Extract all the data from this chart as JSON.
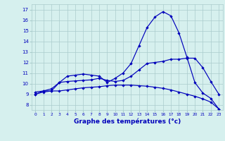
{
  "title": "Graphe des températures (°c)",
  "x_hours": [
    0,
    1,
    2,
    3,
    4,
    5,
    6,
    7,
    8,
    9,
    10,
    11,
    12,
    13,
    14,
    15,
    16,
    17,
    18,
    19,
    20,
    21,
    22,
    23
  ],
  "y_peak": [
    9.0,
    9.3,
    9.3,
    10.1,
    10.7,
    10.8,
    10.9,
    10.8,
    10.7,
    10.1,
    10.5,
    11.0,
    11.9,
    13.6,
    15.3,
    16.3,
    16.8,
    16.4,
    14.8,
    12.5,
    10.1,
    9.1,
    8.6,
    7.6
  ],
  "y_mid": [
    9.2,
    9.3,
    9.5,
    10.1,
    10.2,
    10.25,
    10.3,
    10.35,
    10.5,
    10.3,
    10.2,
    10.3,
    10.7,
    11.3,
    11.9,
    12.0,
    12.1,
    12.3,
    12.3,
    12.4,
    12.4,
    11.5,
    10.2,
    9.0
  ],
  "y_min": [
    9.0,
    9.2,
    9.3,
    9.3,
    9.4,
    9.5,
    9.6,
    9.65,
    9.7,
    9.8,
    9.85,
    9.85,
    9.85,
    9.8,
    9.75,
    9.65,
    9.55,
    9.4,
    9.2,
    9.0,
    8.8,
    8.55,
    8.25,
    7.6
  ],
  "ylim": [
    7.5,
    17.5
  ],
  "yticks": [
    8,
    9,
    10,
    11,
    12,
    13,
    14,
    15,
    16,
    17
  ],
  "bg_color": "#d6f0ee",
  "line_color": "#0000bb",
  "grid_color": "#aacccc"
}
